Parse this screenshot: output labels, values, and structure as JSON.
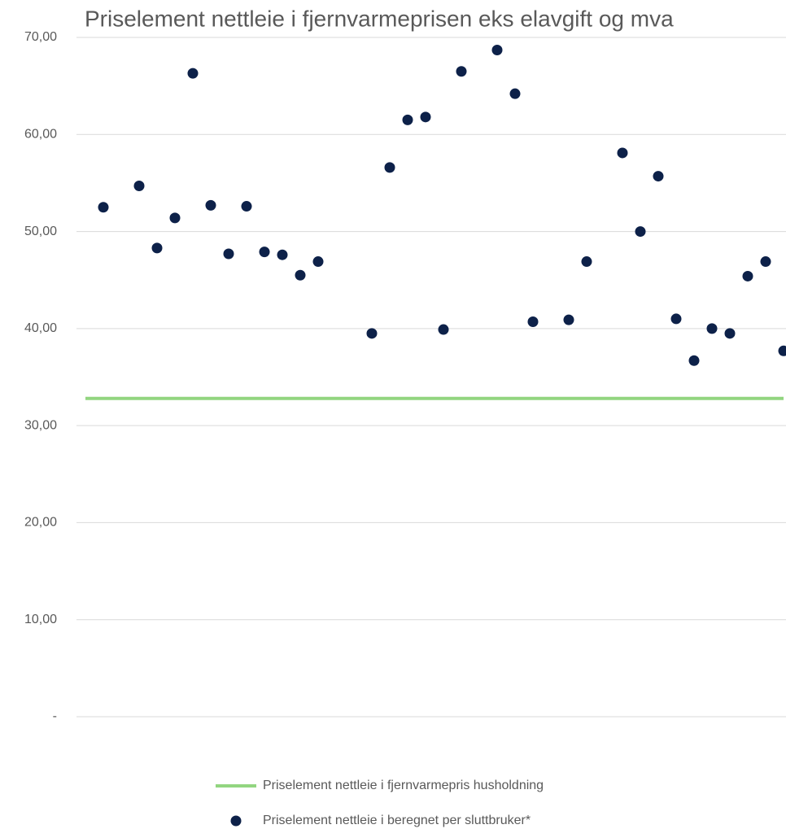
{
  "chart_data": {
    "type": "scatter",
    "title": "Priselement nettleie i fjernvarmeprisen eks elavgift og mva",
    "categories": [
      null,
      null,
      null,
      null,
      null,
      null,
      null,
      null,
      null,
      null,
      null,
      null,
      null,
      null,
      null,
      null,
      null,
      null,
      null,
      null,
      null,
      null,
      null,
      null,
      null,
      null,
      null,
      null,
      null,
      null,
      null,
      null,
      null,
      null,
      null,
      null,
      null,
      null,
      null,
      null
    ],
    "series": [
      {
        "name": "Priselement nettleie i fjernvarmepris husholdning",
        "type": "line",
        "color": "#92d580",
        "values": [
          32.8,
          32.8,
          32.8,
          32.8,
          32.8,
          32.8,
          32.8,
          32.8,
          32.8,
          32.8,
          32.8,
          32.8,
          32.8,
          32.8,
          32.8,
          32.8,
          32.8,
          32.8,
          32.8,
          32.8,
          32.8,
          32.8,
          32.8,
          32.8,
          32.8,
          32.8,
          32.8,
          32.8,
          32.8,
          32.8,
          32.8,
          32.8,
          32.8,
          32.8,
          32.8,
          32.8,
          32.8,
          32.8,
          32.8,
          32.8
        ]
      },
      {
        "name": "Priselement nettleie i beregnet per sluttbruker*",
        "type": "scatter",
        "color": "#0d2149",
        "values": [
          null,
          52.5,
          null,
          54.7,
          48.3,
          51.4,
          66.3,
          52.7,
          47.7,
          52.6,
          47.9,
          47.6,
          45.5,
          46.9,
          null,
          null,
          39.5,
          56.6,
          61.5,
          61.8,
          39.9,
          66.5,
          null,
          68.7,
          64.2,
          40.7,
          null,
          40.9,
          46.9,
          null,
          58.1,
          50.0,
          55.7,
          41.0,
          36.7,
          40.0,
          39.5,
          45.4,
          46.9,
          37.7
        ]
      }
    ],
    "ylim": [
      0,
      70
    ],
    "yticks": [
      {
        "value": 0,
        "label": "-"
      },
      {
        "value": 10,
        "label": "10,00"
      },
      {
        "value": 20,
        "label": "20,00"
      },
      {
        "value": 30,
        "label": "30,00"
      },
      {
        "value": 40,
        "label": "40,00"
      },
      {
        "value": 50,
        "label": "50,00"
      },
      {
        "value": 60,
        "label": "60,00"
      },
      {
        "value": 70,
        "label": "70,00"
      }
    ],
    "grid": true
  }
}
